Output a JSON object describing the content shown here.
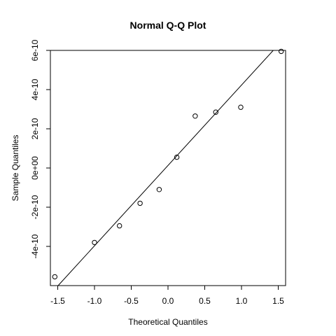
{
  "chart_data": {
    "type": "scatter",
    "title": "Normal Q-Q Plot",
    "xlabel": "Theoretical Quantiles",
    "ylabel": "Sample Quantiles",
    "xlim": [
      -1.6,
      1.6
    ],
    "ylim": [
      -6e-10,
      6e-10
    ],
    "x_ticks": [
      -1.5,
      -1.0,
      -0.5,
      0.0,
      0.5,
      1.0,
      1.5
    ],
    "x_tick_labels": [
      "-1.5",
      "-1.0",
      "-0.5",
      "0.0",
      "0.5",
      "1.0",
      "1.5"
    ],
    "y_ticks": [
      -4e-10,
      -2e-10,
      0,
      2e-10,
      4e-10,
      6e-10
    ],
    "y_tick_labels": [
      "-4e-10",
      "-2e-10",
      "0e+00",
      "2e-10",
      "4e-10",
      "6e-10"
    ],
    "points": [
      {
        "x": -1.54,
        "y": -5.55e-10
      },
      {
        "x": -1.0,
        "y": -3.8e-10
      },
      {
        "x": -0.66,
        "y": -2.95e-10
      },
      {
        "x": -0.38,
        "y": -1.8e-10
      },
      {
        "x": -0.12,
        "y": -1.1e-10
      },
      {
        "x": 0.12,
        "y": 5.5e-11
      },
      {
        "x": 0.37,
        "y": 2.65e-10
      },
      {
        "x": 0.65,
        "y": 2.85e-10
      },
      {
        "x": 0.99,
        "y": 3.1e-10
      },
      {
        "x": 1.54,
        "y": 5.95e-10
      }
    ],
    "reference_line": {
      "intercept": 1.3e-11,
      "slope": 4.1e-10
    },
    "grid": false,
    "legend": "none"
  }
}
